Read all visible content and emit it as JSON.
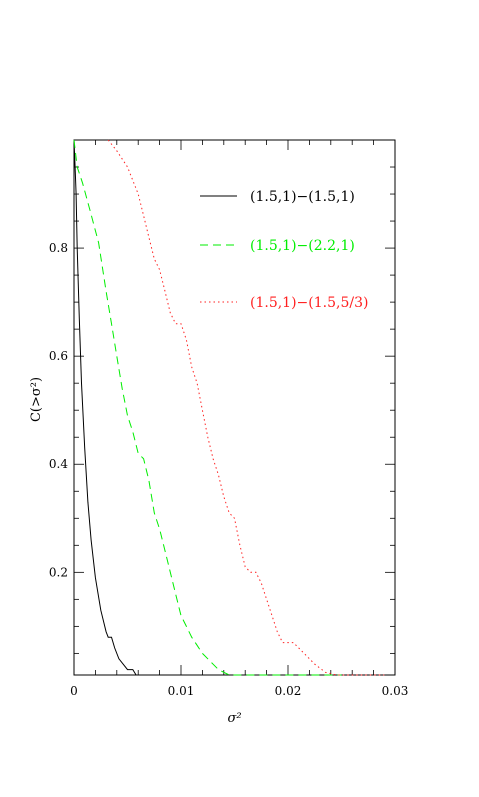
{
  "chart_data": {
    "type": "line",
    "xlabel": "σ²",
    "ylabel": "C(>σ²)",
    "xlim": [
      0,
      0.03
    ],
    "ylim": [
      0.01,
      1.0
    ],
    "xticks": [
      0,
      0.01,
      0.02,
      0.03
    ],
    "xtick_labels": [
      "0",
      "0.01",
      "0.02",
      "0.03"
    ],
    "yticks": [
      0.2,
      0.4,
      0.6,
      0.8
    ],
    "ytick_labels": [
      "0.2",
      "0.4",
      "0.6",
      "0.8"
    ],
    "grid": false,
    "legend_position": "top-right",
    "series": [
      {
        "name": "(1.5,1)−(1.5,1)",
        "color": "#000000",
        "style": "solid",
        "x": [
          0,
          0.0001,
          0.0002,
          0.0003,
          0.0005,
          0.0007,
          0.001,
          0.0013,
          0.0016,
          0.002,
          0.0025,
          0.003,
          0.0032,
          0.0035,
          0.0038,
          0.0042,
          0.0046,
          0.005,
          0.0055,
          0.0058,
          0.006
        ],
        "y": [
          1.0,
          0.95,
          0.9,
          0.8,
          0.67,
          0.55,
          0.43,
          0.33,
          0.26,
          0.19,
          0.13,
          0.09,
          0.08,
          0.08,
          0.06,
          0.04,
          0.03,
          0.02,
          0.02,
          0.01,
          0.01
        ]
      },
      {
        "name": "(1.5,1)−(2.2,1)",
        "color": "#00ee00",
        "style": "dashed",
        "x": [
          0,
          0.0003,
          0.0008,
          0.0015,
          0.0023,
          0.003,
          0.0035,
          0.004,
          0.0045,
          0.005,
          0.0055,
          0.006,
          0.0065,
          0.007,
          0.0075,
          0.008,
          0.0085,
          0.009,
          0.0095,
          0.01,
          0.0105,
          0.011,
          0.0115,
          0.012,
          0.0125,
          0.013,
          0.0135,
          0.014,
          0.0145,
          0.015,
          0.02,
          0.025
        ],
        "y": [
          1.0,
          0.95,
          0.92,
          0.87,
          0.81,
          0.72,
          0.66,
          0.6,
          0.54,
          0.49,
          0.46,
          0.42,
          0.41,
          0.37,
          0.31,
          0.28,
          0.24,
          0.2,
          0.16,
          0.12,
          0.1,
          0.08,
          0.065,
          0.05,
          0.04,
          0.03,
          0.02,
          0.015,
          0.01,
          0.01,
          0.01,
          0.01
        ]
      },
      {
        "name": "(1.5,1)−(1.5,5/3)",
        "color": "#ff2020",
        "style": "dotted",
        "x": [
          0.0032,
          0.004,
          0.005,
          0.006,
          0.0065,
          0.007,
          0.0075,
          0.008,
          0.0085,
          0.009,
          0.0095,
          0.01,
          0.0105,
          0.011,
          0.0115,
          0.012,
          0.0125,
          0.013,
          0.0135,
          0.014,
          0.0145,
          0.015,
          0.0155,
          0.016,
          0.0165,
          0.017,
          0.0175,
          0.018,
          0.0185,
          0.019,
          0.0195,
          0.0205,
          0.0215,
          0.0225,
          0.0235,
          0.0245,
          0.029
        ],
        "y": [
          1.0,
          0.98,
          0.95,
          0.9,
          0.86,
          0.82,
          0.78,
          0.76,
          0.72,
          0.68,
          0.66,
          0.66,
          0.63,
          0.58,
          0.55,
          0.5,
          0.45,
          0.41,
          0.38,
          0.34,
          0.31,
          0.3,
          0.25,
          0.21,
          0.2,
          0.2,
          0.18,
          0.15,
          0.12,
          0.09,
          0.07,
          0.07,
          0.05,
          0.03,
          0.015,
          0.01,
          0.01
        ]
      }
    ]
  }
}
